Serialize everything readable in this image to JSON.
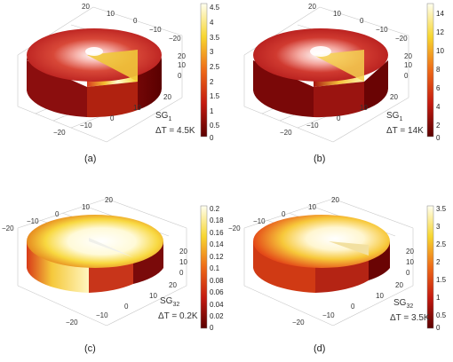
{
  "panels": [
    {
      "id": "a",
      "caption": "(a)",
      "series_label": "SG",
      "series_sub": "1",
      "delta_label": "ΔT = 4.5K",
      "colorbar_ticks": [
        "4.5",
        "4",
        "3.5",
        "3",
        "2.5",
        "2",
        "1.5",
        "1",
        "0.5",
        "0"
      ],
      "axis_top": [
        "20",
        "10",
        "0",
        "−10",
        "−20"
      ],
      "axis_right": [
        "20",
        "10",
        "0"
      ],
      "axis_bottom": [
        "20",
        "10",
        "0",
        "−10",
        "−20"
      ]
    },
    {
      "id": "b",
      "caption": "(b)",
      "series_label": "SG",
      "series_sub": "1",
      "delta_label": "ΔT = 14K",
      "colorbar_ticks": [
        "14",
        "12",
        "10",
        "8",
        "6",
        "4",
        "2",
        "0"
      ],
      "axis_top": [
        "20",
        "10",
        "0",
        "−10",
        "−20"
      ],
      "axis_right": [
        "20",
        "10",
        "0"
      ],
      "axis_bottom": [
        "20",
        "10",
        "0",
        "−10",
        "−20"
      ]
    },
    {
      "id": "c",
      "caption": "(c)",
      "series_label": "SG",
      "series_sub": "32",
      "delta_label": "ΔT = 0.2K",
      "colorbar_ticks": [
        "0.2",
        "0.18",
        "0.16",
        "0.14",
        "0.12",
        "0.1",
        "0.08",
        "0.06",
        "0.04",
        "0.02",
        "0"
      ],
      "axis_top": [
        "−20",
        "−10",
        "0",
        "10",
        "20"
      ],
      "axis_right": [
        "20",
        "10",
        "0"
      ],
      "axis_bottom": [
        "20",
        "10",
        "0",
        "−10",
        "−20"
      ]
    },
    {
      "id": "d",
      "caption": "(d)",
      "series_label": "SG",
      "series_sub": "32",
      "delta_label": "ΔT = 3.5K",
      "colorbar_ticks": [
        "3.5",
        "3",
        "2.5",
        "2",
        "1.5",
        "1",
        "0.5",
        "0"
      ],
      "axis_top": [
        "−20",
        "−10",
        "0",
        "10",
        "20"
      ],
      "axis_right": [
        "20",
        "10",
        "0"
      ],
      "axis_bottom": [
        "20",
        "10",
        "0",
        "−10",
        "−20"
      ]
    }
  ]
}
